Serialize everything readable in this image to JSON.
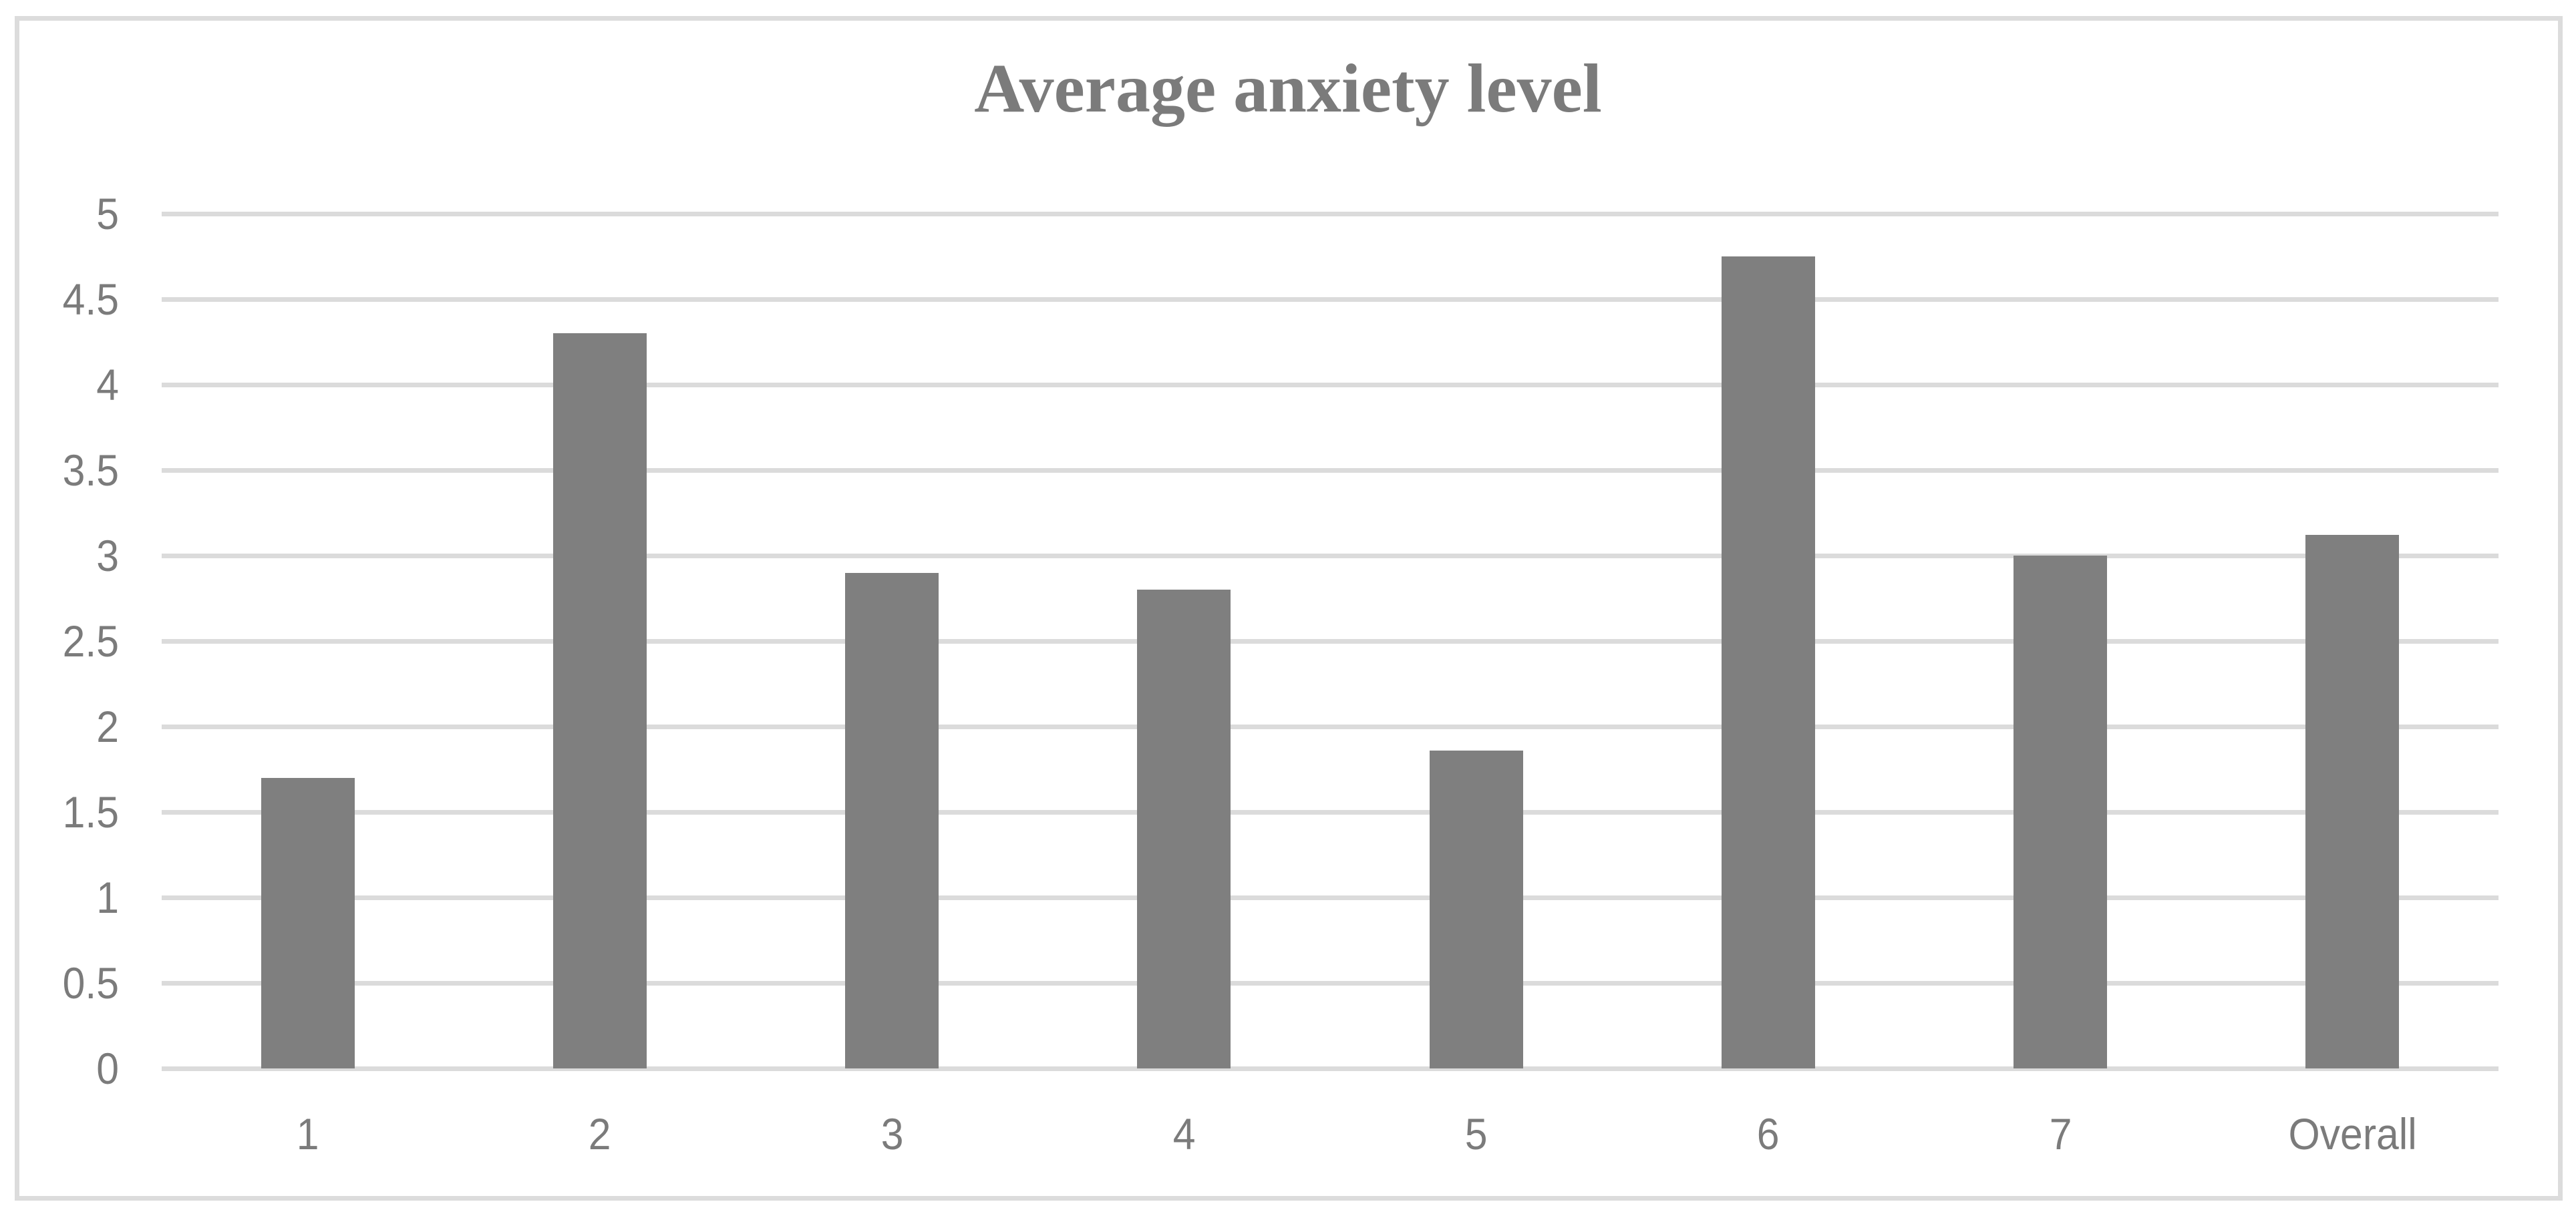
{
  "figure": {
    "title": "Average anxiety level",
    "frame_color": "#dcdcdc",
    "background_color": "#ffffff"
  },
  "chart_data": {
    "type": "bar",
    "title": "Average anxiety level",
    "categories": [
      "1",
      "2",
      "3",
      "4",
      "5",
      "6",
      "7",
      "Overall"
    ],
    "values": [
      1.7,
      4.3,
      2.9,
      2.8,
      1.86,
      4.75,
      3.0,
      3.12
    ],
    "xlabel": "",
    "ylabel": "",
    "ylim": [
      0,
      5
    ],
    "ytick_step": 0.5,
    "ytick_labels": [
      "0",
      "0.5",
      "1",
      "1.5",
      "2",
      "2.5",
      "3",
      "3.5",
      "4",
      "4.5",
      "5"
    ],
    "grid": true,
    "legend": false,
    "bar_color": "#7f7f7f",
    "gridline_color": "#dbdbdb",
    "axis_label_color": "#7b7b7b",
    "title_color": "#7b7b7b"
  }
}
